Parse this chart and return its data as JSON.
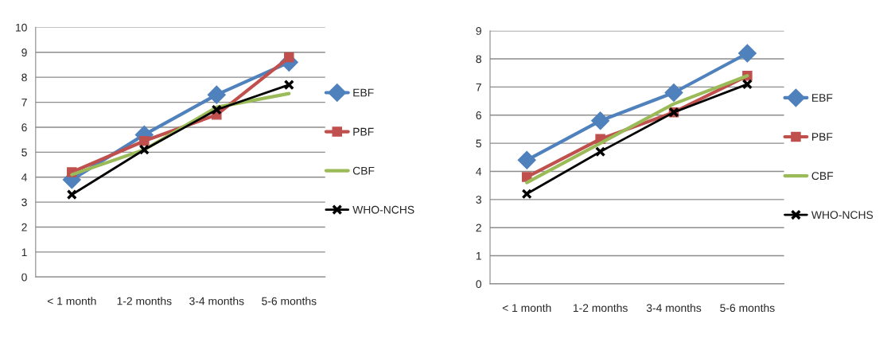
{
  "chart_data": [
    {
      "type": "line",
      "categories": [
        "< 1 month",
        "1-2 months",
        "3-4 months",
        "5-6 months"
      ],
      "ylim": [
        0,
        10
      ],
      "yticks": [
        0,
        1,
        2,
        3,
        4,
        5,
        6,
        7,
        8,
        9,
        10
      ],
      "grid": "y",
      "legend": "right",
      "series": [
        {
          "name": "EBF",
          "color": "#4f81bd",
          "marker": "diamond",
          "values": [
            3.9,
            5.7,
            7.3,
            8.6
          ]
        },
        {
          "name": "PBF",
          "color": "#c0504d",
          "marker": "square",
          "values": [
            4.2,
            5.45,
            6.5,
            8.8
          ]
        },
        {
          "name": "CBF",
          "color": "#9bbb59",
          "marker": "none",
          "values": [
            4.1,
            5.1,
            6.8,
            7.35
          ]
        },
        {
          "name": "WHO-NCHS",
          "color": "#000000",
          "marker": "cross",
          "values": [
            3.3,
            5.1,
            6.7,
            7.7
          ]
        }
      ]
    },
    {
      "type": "line",
      "categories": [
        "< 1 month",
        "1-2 months",
        "3-4 months",
        "5-6 months"
      ],
      "ylim": [
        0,
        9
      ],
      "yticks": [
        0,
        1,
        2,
        3,
        4,
        5,
        6,
        7,
        8,
        9
      ],
      "grid": "y",
      "legend": "right",
      "series": [
        {
          "name": "EBF",
          "color": "#4f81bd",
          "marker": "diamond",
          "values": [
            4.4,
            5.8,
            6.8,
            8.2
          ]
        },
        {
          "name": "PBF",
          "color": "#c0504d",
          "marker": "square",
          "values": [
            3.8,
            5.15,
            6.1,
            7.4
          ]
        },
        {
          "name": "CBF",
          "color": "#9bbb59",
          "marker": "none",
          "values": [
            3.6,
            5.0,
            6.4,
            7.4
          ]
        },
        {
          "name": "WHO-NCHS",
          "color": "#000000",
          "marker": "cross",
          "values": [
            3.2,
            4.7,
            6.1,
            7.1
          ]
        }
      ]
    }
  ]
}
